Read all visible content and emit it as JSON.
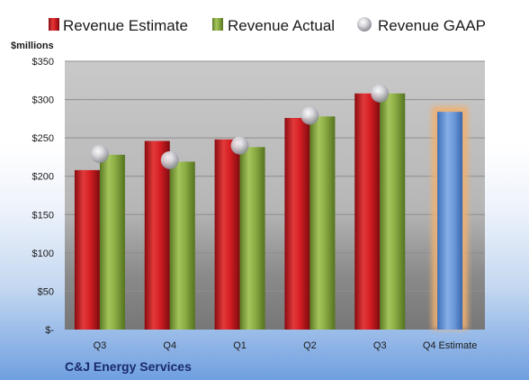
{
  "chart_data": {
    "type": "bar",
    "unit_label": "$millions",
    "company": "C&J Energy Services",
    "categories": [
      "Q3",
      "Q4",
      "Q1",
      "Q2",
      "Q3",
      "Q4 Estimate"
    ],
    "series": [
      {
        "name": "Revenue Estimate",
        "kind": "bar",
        "color": "#c0111a",
        "values": [
          208,
          246,
          248,
          276,
          308,
          null
        ]
      },
      {
        "name": "Revenue Actual",
        "kind": "bar",
        "color": "#7fa03c",
        "values": [
          228,
          219,
          238,
          278,
          308,
          null
        ]
      },
      {
        "name": "Revenue GAAP",
        "kind": "marker",
        "color": "#b8b8c0",
        "values": [
          229,
          221,
          240,
          279,
          308,
          null
        ]
      },
      {
        "name": "",
        "kind": "bar",
        "color": "#5b8ed6",
        "highlight": "#f0b070",
        "values": [
          null,
          null,
          null,
          null,
          null,
          284
        ]
      }
    ],
    "ylim": [
      0,
      350
    ],
    "y_ticks": [
      0,
      50,
      100,
      150,
      200,
      250,
      300,
      350
    ],
    "y_tick_labels": [
      "$-",
      "$50",
      "$100",
      "$150",
      "$200",
      "$250",
      "$300",
      "$350"
    ],
    "grid": true,
    "legend_position": "top"
  }
}
